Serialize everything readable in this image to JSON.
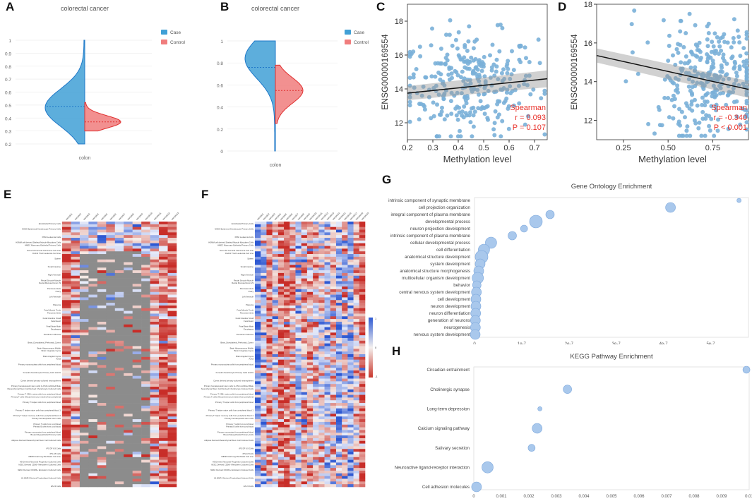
{
  "panel_labels": {
    "A": "A",
    "B": "B",
    "C": "C",
    "D": "D",
    "E": "E",
    "F": "F",
    "G": "G",
    "H": "H"
  },
  "colors": {
    "case": "#41a0d6",
    "control": "#f07d7d",
    "case_line": "#1f78c8",
    "control_line": "#e03030",
    "scatter": "#7ab0d8",
    "spearman": "#e8312a",
    "heat_red": "#c9372c",
    "heat_blue": "#2f5bd3",
    "heat_gray": "#8c8c8c",
    "bubble": "#a9c8ec",
    "bubble_edge": "#7aa6dc"
  },
  "chart_data": [
    {
      "id": "A",
      "type": "violin",
      "title": "colorectal cancer",
      "xlabel": "colon",
      "ylim": [
        0.2,
        1.0
      ],
      "yticks": [
        "0.2",
        "0.3",
        "0.4",
        "0.5",
        "0.6",
        "0.7",
        "0.8",
        "0.9",
        "1"
      ],
      "legend": [
        "Case",
        "Control"
      ],
      "series": [
        {
          "name": "Case",
          "median": 0.49,
          "range": [
            0.2,
            1.0
          ],
          "mode": 0.48
        },
        {
          "name": "Control",
          "median": 0.37,
          "range": [
            0.3,
            0.52
          ],
          "mode": 0.37
        }
      ]
    },
    {
      "id": "B",
      "type": "violin",
      "title": "colorectal cancer",
      "xlabel": "colon",
      "ylim": [
        0.0,
        1.0
      ],
      "yticks": [
        "0",
        "0.2",
        "0.4",
        "0.6",
        "0.8",
        "1"
      ],
      "legend": [
        "Case",
        "Control"
      ],
      "series": [
        {
          "name": "Case",
          "median": 0.76,
          "range": [
            0.0,
            1.0
          ],
          "mode": 0.84
        },
        {
          "name": "Control",
          "median": 0.55,
          "range": [
            0.25,
            0.78
          ],
          "mode": 0.55
        }
      ]
    },
    {
      "id": "C",
      "type": "scatter",
      "ylabel": "ENSG00000169554",
      "xlabel": "Methylation level",
      "xlim": [
        0.2,
        0.75
      ],
      "ylim": [
        11,
        19
      ],
      "xticks": [
        "0.2",
        "0.3",
        "0.4",
        "0.5",
        "0.6",
        "0.7"
      ],
      "yticks": [
        "12",
        "14",
        "16",
        "18"
      ],
      "fit": {
        "y_at_xmin": 13.75,
        "y_at_xmax": 14.6
      },
      "stats": [
        "Spearman",
        "r = 0.093",
        "P = 0.107"
      ],
      "n_points": 300,
      "x_center": 0.45,
      "y_center": 14.3
    },
    {
      "id": "D",
      "type": "scatter",
      "ylabel": "ENSG00000169554",
      "xlabel": "Methylation level",
      "xlim": [
        0.1,
        0.95
      ],
      "ylim": [
        11,
        18
      ],
      "xticks": [
        "0.25",
        "0.50",
        "0.75"
      ],
      "yticks": [
        "12",
        "14",
        "16",
        "18"
      ],
      "fit": {
        "y_at_xmin": 15.35,
        "y_at_xmax": 13.6
      },
      "stats": [
        "Spearman",
        "r = -0.340",
        "P < 0.001"
      ],
      "n_points": 300,
      "x_center": 0.72,
      "y_center": 14.3
    },
    {
      "id": "E",
      "type": "heatmap",
      "rows": 98,
      "cols": 13,
      "note": "tissue/cell-type methylation heatmap with gray missing values",
      "row_labels": [
        "Endothelial Primary Cells",
        "NHEK Epidermal Keratinocyte Primary Cells",
        "NH-A Astrocytes Primary Cells",
        "K562 Leukemia Cells",
        "HSMM cell derived Skeletal Muscle Myotubes Cells",
        "HMEC Mammary Epithelial Primary Cells",
        "HeLa-S3 Cervical Carcinoma Cell Line",
        "Dnd41 TCell Leukemia Cell Line",
        "Spleen",
        "Stomach Smooth Muscle",
        "Small Intestine",
        "Skeletal Muscle Male",
        "Right Ventricle",
        "Rectal Smooth Muscle",
        "Rectal Mucosa Donor 29",
        "Pancreas Islets",
        "Ovary",
        "Left Ventricle",
        "Fetal Thymus",
        "Placenta",
        "Fetal Muscle Trunk",
        "Pancreas Islets",
        "Fetal Intestine Small",
        "Fetal Heart",
        "Fetal Brain Male",
        "Esophagus",
        "Duodenum Mucosa",
        "Colonic Mucosa",
        "Brain_Dorsolateral_Prefrontal_Cortex",
        "Brain Hippocampus Middle",
        "Brain Cingulate Gyrus",
        "Brain Angular Gyrus",
        "Aorta",
        "Primary mononuclear cells from peripheral blood",
        "Foreskin Melanocyte Primary Cells skin01",
        "Foreskin Keratinocyte Primary Cells skin01",
        "Foreskin Fibroblast Primary Cells skin01",
        "Cortex derived primary cultured neurospheres",
        "Primary hematopoietic stem cells G-CSF-mobilized Male",
        "Mesenchymal Stem Cell Derived Chondrocyte Cultured Cells",
        "Primary T CD8+ naive cells from peripheral blood",
        "Primary T cells effector/memory enriched from peripheral",
        "Primary T helper cells from peripheral blood",
        "Primary T helper cells PMA-I stimulated",
        "Primary T helper naive cells from peripheral blood 1",
        "Primary T helper memory cells from peripheral blood 2",
        "Primary hematopoietic stem cells",
        "Primary T cells from cord blood",
        "Primary B cells from cord blood",
        "Primary monocytes from peripheral blood",
        "Breast Myoepithelial Primary Cells",
        "Adipose Derived Mesenchymal Stem Cell Cultured Cells",
        "Mesenchymal Stem Cell Derived Adipocyte Cultured Cells",
        "iPS DF 6.9 Cells",
        "iPS-18 Cells",
        "IMR90 fetal lung fibroblasts Cell Line",
        "H9 Derived Neuronal Progenitor Cultured Cells",
        "hESC Derived CD56+ Mesoderm Cultured Cells",
        "hESC Derived CD184+ Endoderm Cultured Cells",
        "H1 Derived Neuronal Progenitor Cultured Cells",
        "H1 BMP4 Derived Trophoblast Cultured Cells",
        "H1 Cells",
        "ES-I3 Cells"
      ]
    },
    {
      "id": "F",
      "type": "heatmap",
      "rows": 98,
      "cols": 19,
      "legend_ticks": [
        "1",
        "0",
        "-1"
      ]
    },
    {
      "id": "G",
      "type": "scatter",
      "title": "Gene Ontology Enrichment",
      "xlim": [
        0,
        5.8e-07
      ],
      "xticks": [
        "0",
        "1e-7",
        "2e-7",
        "3e-7",
        "4e-7",
        "5e-7"
      ],
      "categories": [
        "intrinsic component of synaptic membrane",
        "cell projection organization",
        "integral component of plasma membrane",
        "developmental process",
        "neuron projection development",
        "intrinsic component of plasma membrane",
        "cellular developmental process",
        "cell differentiation",
        "anatomical structure development",
        "system development",
        "anatomical structure morphogenesis",
        "multicellular organism development",
        "behavior",
        "central nervous system development",
        "cell development",
        "neuron development",
        "neuron differentiation",
        "generation of neurons",
        "neurogenesis",
        "nervous system development"
      ],
      "values": [
        5.6e-07,
        4.15e-07,
        1.6e-07,
        1.3e-07,
        1.05e-07,
        8e-08,
        3.5e-08,
        2e-08,
        1.5e-08,
        1.2e-08,
        9e-09,
        7e-09,
        5e-09,
        4e-09,
        3e-09,
        3e-09,
        2.5e-09,
        2e-09,
        2e-09,
        1.5e-09
      ],
      "sizes": [
        3,
        7,
        6,
        9,
        5,
        6,
        8,
        8,
        9,
        7,
        7,
        8,
        6,
        7,
        7,
        7,
        7,
        7,
        7,
        7
      ]
    },
    {
      "id": "H",
      "type": "scatter",
      "title": "KEGG Pathway Enrichment",
      "xlim": [
        0,
        0.01
      ],
      "xticks": [
        "0",
        "0.001",
        "0.002",
        "0.003",
        "0.004",
        "0.005",
        "0.006",
        "0.007",
        "0.008",
        "0.009",
        "0.01"
      ],
      "categories": [
        "Circadian entrainment",
        "Cholinergic synapse",
        "Long-term depression",
        "Calcium signaling pathway",
        "Salivary secretion",
        "Neuroactive ligand-receptor interaction",
        "Cell adhesion molecules"
      ],
      "values": [
        0.0099,
        0.0034,
        0.0024,
        0.0023,
        0.0021,
        0.0005,
        0.0001
      ],
      "sizes": [
        5,
        6,
        3,
        7,
        5,
        8,
        7
      ]
    }
  ]
}
